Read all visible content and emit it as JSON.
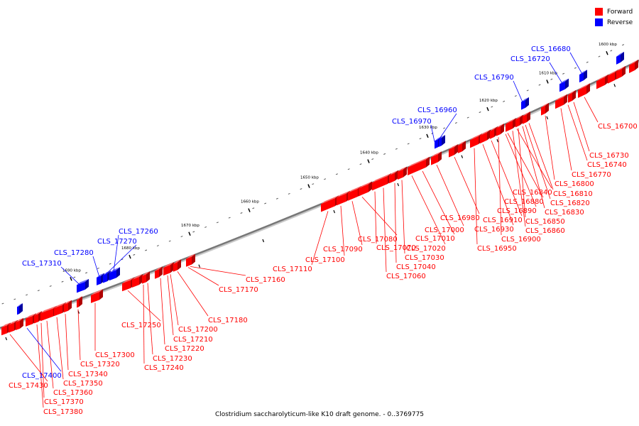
{
  "legend": {
    "forward_label": "Forward",
    "reverse_label": "Reverse",
    "forward_color": "#ff0000",
    "reverse_color": "#0000ff"
  },
  "caption": "Clostridium saccharolyticum-like K10 draft genome. - 0..3769775",
  "scale_ticks": [
    {
      "label": "1600 kbp",
      "kbp": 1600
    },
    {
      "label": "1610 kbp",
      "kbp": 1610
    },
    {
      "label": "1620 kbp",
      "kbp": 1620
    },
    {
      "label": "1630 kbp",
      "kbp": 1630
    },
    {
      "label": "1640 kbp",
      "kbp": 1640
    },
    {
      "label": "1650 kbp",
      "kbp": 1650
    },
    {
      "label": "1660 kbp",
      "kbp": 1660
    },
    {
      "label": "1670 kbp",
      "kbp": 1670
    },
    {
      "label": "1680 kbp",
      "kbp": 1680
    },
    {
      "label": "1690 kbp",
      "kbp": 1690
    }
  ],
  "forward_labels": [
    "CLS_16700",
    "CLS_16730",
    "CLS_16740",
    "CLS_16770",
    "CLS_16800",
    "CLS_16810",
    "CLS_16820",
    "CLS_16830",
    "CLS_16840",
    "CLS_16850",
    "CLS_16860",
    "CLS_16880",
    "CLS_16890",
    "CLS_16900",
    "CLS_16910",
    "CLS_16930",
    "CLS_16950",
    "CLS_16980",
    "CLS_17000",
    "CLS_17010",
    "CLS_17020",
    "CLS_17030",
    "CLS_17040",
    "CLS_17060",
    "CLS_17070",
    "CLS_17080",
    "CLS_17090",
    "CLS_17100",
    "CLS_17110",
    "CLS_17160",
    "CLS_17170",
    "CLS_17180",
    "CLS_17200",
    "CLS_17210",
    "CLS_17220",
    "CLS_17230",
    "CLS_17240",
    "CLS_17250",
    "CLS_17300",
    "CLS_17320",
    "CLS_17340",
    "CLS_17350",
    "CLS_17360",
    "CLS_17370",
    "CLS_17380",
    "CLS_17430"
  ],
  "reverse_labels": [
    "CLS_16680",
    "CLS_16720",
    "CLS_16790",
    "CLS_16960",
    "CLS_16970",
    "CLS_17260",
    "CLS_17270",
    "CLS_17280",
    "CLS_17310",
    "CLS_17400"
  ]
}
